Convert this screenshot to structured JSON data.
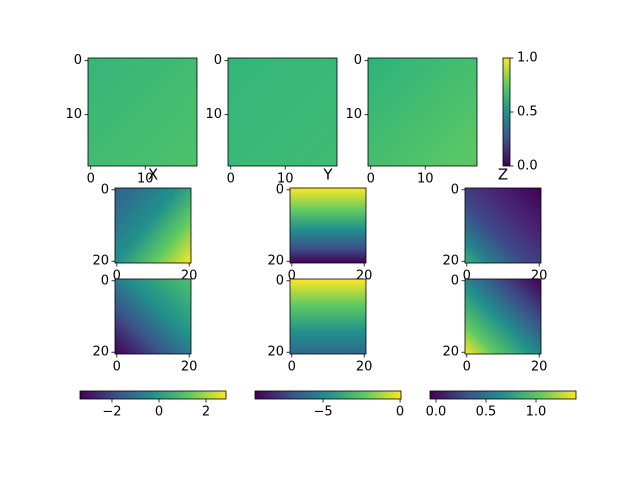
{
  "chart_data": [
    {
      "type": "image",
      "xlim": [
        -0.5,
        19.5
      ],
      "ylim": [
        19.5,
        -0.5
      ],
      "xticks": [
        0,
        10
      ],
      "yticks": [
        0,
        10
      ]
    },
    {
      "type": "image",
      "xlim": [
        -0.5,
        19.5
      ],
      "ylim": [
        19.5,
        -0.5
      ],
      "xticks": [
        0,
        10
      ],
      "yticks": [
        0,
        10
      ]
    },
    {
      "type": "image",
      "xlim": [
        -0.5,
        19.5
      ],
      "ylim": [
        19.5,
        -0.5
      ],
      "xticks": [
        0,
        10
      ],
      "yticks": [
        0,
        10
      ]
    },
    {
      "type": "colorbar",
      "ylim": [
        0,
        1
      ],
      "yticks": [
        {
          "value": 0,
          "label": "0.0"
        },
        {
          "value": 0.5,
          "label": "0.5"
        },
        {
          "value": 1,
          "label": "1.0"
        }
      ]
    },
    {
      "type": "image",
      "title": "X",
      "xlim": [
        -0.5,
        20.5
      ],
      "ylim": [
        20.5,
        -0.5
      ],
      "xticks": [
        0,
        20
      ],
      "yticks": [
        0,
        20
      ]
    },
    {
      "type": "image",
      "title": "Y",
      "xlim": [
        -0.5,
        20.5
      ],
      "ylim": [
        20.5,
        -0.5
      ],
      "xticks": [
        0,
        20
      ],
      "yticks": [
        0,
        20
      ]
    },
    {
      "type": "image",
      "title": "Z",
      "xlim": [
        -0.5,
        20.5
      ],
      "ylim": [
        20.5,
        -0.5
      ],
      "xticks": [
        0,
        20
      ],
      "yticks": [
        0,
        20
      ]
    },
    {
      "type": "image",
      "xlim": [
        -0.5,
        20.5
      ],
      "ylim": [
        20.5,
        -0.5
      ],
      "xticks": [
        0,
        20
      ],
      "yticks": [
        0,
        20
      ]
    },
    {
      "type": "image",
      "xlim": [
        -0.5,
        20.5
      ],
      "ylim": [
        20.5,
        -0.5
      ],
      "xticks": [
        0,
        20
      ],
      "yticks": [
        0,
        20
      ]
    },
    {
      "type": "image",
      "xlim": [
        -0.5,
        20.5
      ],
      "ylim": [
        20.5,
        -0.5
      ],
      "xticks": [
        0,
        20
      ],
      "yticks": [
        0,
        20
      ]
    },
    {
      "type": "colorbar",
      "xlim": [
        -3.36,
        2.85
      ],
      "xticks": [
        {
          "value": -2,
          "label": "−2"
        },
        0,
        2
      ]
    },
    {
      "type": "colorbar",
      "xlim": [
        -9.42,
        0.06
      ],
      "xticks": [
        {
          "value": -5,
          "label": "−5"
        },
        0
      ]
    },
    {
      "type": "colorbar",
      "xlim": [
        -0.06,
        1.4
      ],
      "xticks": [
        {
          "value": 0,
          "label": "0.0"
        },
        {
          "value": 0.5,
          "label": "0.5"
        },
        {
          "value": 1,
          "label": "1.0"
        }
      ]
    }
  ]
}
